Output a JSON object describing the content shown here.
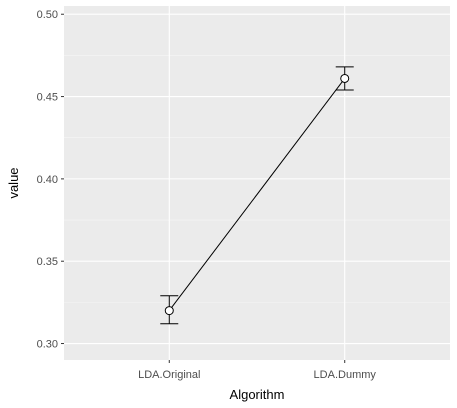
{
  "chart_data": {
    "type": "line",
    "title": "",
    "xlabel": "Algorithm",
    "ylabel": "value",
    "categories": [
      "LDA.Original",
      "LDA.Dummy"
    ],
    "series": [
      {
        "values": [
          0.32,
          0.461
        ],
        "error_low": [
          0.312,
          0.454
        ],
        "error_high": [
          0.329,
          0.468
        ]
      }
    ],
    "ylim": [
      0.29,
      0.505
    ],
    "yticks": [
      0.3,
      0.35,
      0.4,
      0.45,
      0.5
    ],
    "ytick_labels": [
      "0.30",
      "0.35",
      "0.40",
      "0.45",
      "0.50"
    ],
    "grid": true,
    "legend": "none",
    "colors": {
      "panel": "#ebebeb",
      "grid_major": "#ffffff",
      "line": "#000000",
      "point_fill": "#ffffff"
    }
  }
}
